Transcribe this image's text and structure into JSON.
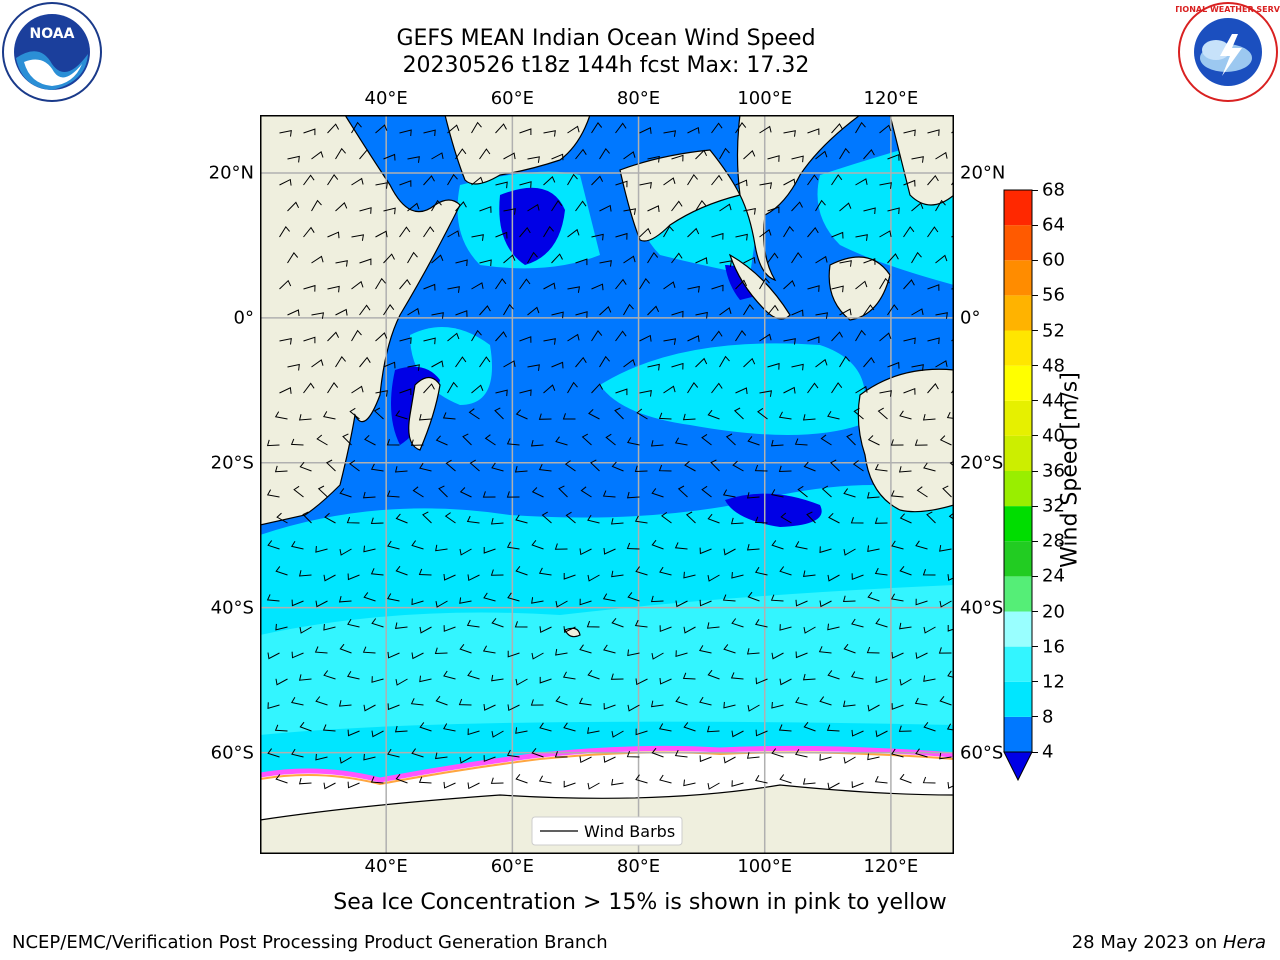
{
  "title": {
    "line1": "GEFS MEAN Indian Ocean Wind Speed",
    "line2": "20230526 t18z 144h fcst   Max: 17.32"
  },
  "map": {
    "region": "Indian Ocean",
    "lon_range": [
      20,
      130
    ],
    "lat_range": [
      -74,
      28
    ],
    "lon_ticks": [
      "40°E",
      "60°E",
      "80°E",
      "100°E",
      "120°E"
    ],
    "lat_ticks": [
      "20°N",
      "0°",
      "20°S",
      "40°S",
      "60°S"
    ],
    "legend_label": "Wind Barbs",
    "colors": {
      "land": "#efefde",
      "ice": "#ffffff",
      "grid": "#b0b0b0"
    }
  },
  "colorbar": {
    "title": "Wind Speed [m/s]",
    "ticks": [
      "4",
      "8",
      "12",
      "16",
      "20",
      "24",
      "28",
      "32",
      "36",
      "40",
      "44",
      "48",
      "52",
      "56",
      "60",
      "64",
      "68"
    ],
    "colors": [
      "#0000e6",
      "#0078ff",
      "#00e6ff",
      "#33f5ff",
      "#99ffff",
      "#55ee77",
      "#22cc22",
      "#00dd00",
      "#99ee00",
      "#ccee00",
      "#e6f000",
      "#ffff00",
      "#ffe600",
      "#ffb300",
      "#ff8c00",
      "#ff5a00",
      "#ff2800",
      "#ff0000"
    ]
  },
  "notes": {
    "ice": "Sea Ice Concentration > 15% is shown in pink to yellow",
    "footer_left": "NCEP/EMC/Verification Post Processing Product Generation Branch",
    "footer_right_prefix": "28 May 2023 on ",
    "footer_right_host": "Hera"
  },
  "logos": {
    "noaa": "NOAA",
    "nws": "NATIONAL WEATHER SERVICE"
  }
}
